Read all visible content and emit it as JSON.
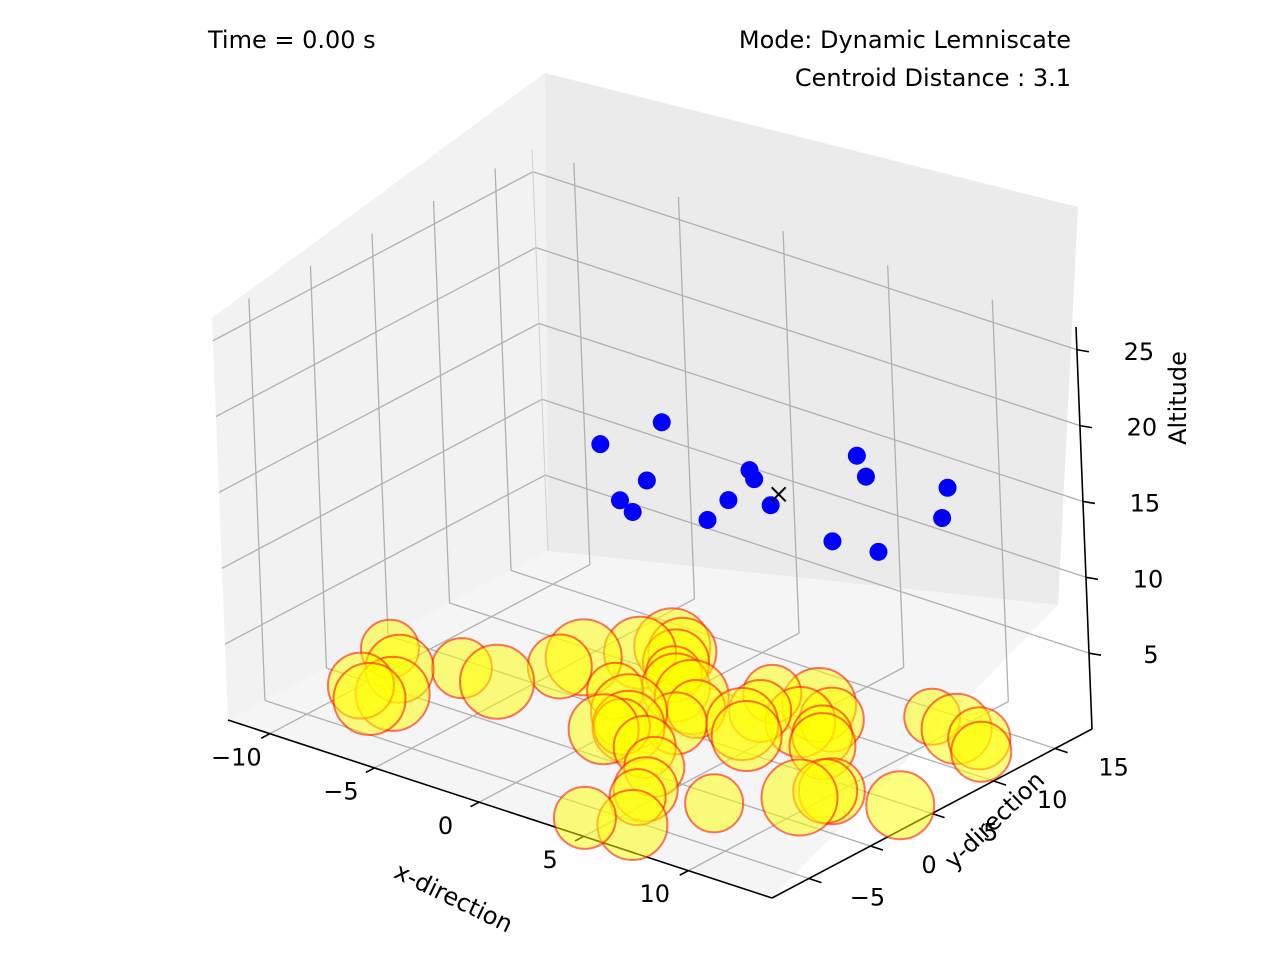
{
  "header": {
    "time_label": "Time = 0.00 s",
    "mode_label": "Mode: Dynamic Lemniscate",
    "distance_label": "Centroid Distance : 3.1"
  },
  "chart_data": {
    "type": "scatter3d",
    "title": "",
    "xlabel": "x-direction",
    "ylabel": "y-direction",
    "zlabel": "Altitude",
    "x_ticks": [
      "−10",
      "−5",
      "0",
      "5",
      "10"
    ],
    "y_ticks": [
      "−5",
      "0",
      "5",
      "10",
      "15"
    ],
    "z_ticks": [
      "5",
      "10",
      "15",
      "20",
      "25"
    ],
    "grid": true,
    "colors": {
      "obstacle_fill": "#ffff00",
      "obstacle_edge": "#ff0000",
      "agent": "#0000ff",
      "pane": "#f2f2f2",
      "grid": "#b0b0b0"
    },
    "series": [
      {
        "name": "",
        "marker": "circle-large",
        "points": [
          [
            -11.2,
            3.8,
            0
          ],
          [
            -9.8,
            2.2,
            0
          ],
          [
            -8.0,
            4.2,
            0
          ],
          [
            -8.6,
            -0.4,
            0
          ],
          [
            -9.0,
            -1.6,
            0
          ],
          [
            -10.0,
            -0.6,
            0
          ],
          [
            -6.2,
            4.0,
            0
          ],
          [
            -5.2,
            7.4,
            0
          ],
          [
            -5.0,
            9.0,
            0
          ],
          [
            -3.6,
            11.2,
            0
          ],
          [
            -3.0,
            12.8,
            0
          ],
          [
            -2.4,
            12.6,
            0
          ],
          [
            -2.0,
            11.4,
            0
          ],
          [
            -1.4,
            10.2,
            0
          ],
          [
            -0.6,
            9.0,
            0
          ],
          [
            -2.2,
            6.8,
            0
          ],
          [
            -0.6,
            5.2,
            0
          ],
          [
            0.4,
            8.6,
            0
          ],
          [
            1.2,
            7.6,
            0
          ],
          [
            0.2,
            3.8,
            0
          ],
          [
            1.4,
            5.6,
            0
          ],
          [
            2.6,
            11.4,
            0
          ],
          [
            3.2,
            9.4,
            0
          ],
          [
            3.4,
            7.6,
            0
          ],
          [
            5.0,
            9.6,
            0
          ],
          [
            4.2,
            6.6,
            0
          ],
          [
            4.6,
            11.8,
            0
          ],
          [
            5.8,
            10.8,
            0
          ],
          [
            6.4,
            9.0,
            0
          ],
          [
            7.0,
            8.0,
            0
          ],
          [
            8.6,
            14.2,
            0
          ],
          [
            10.0,
            13.8,
            0
          ],
          [
            11.2,
            13.6,
            0
          ],
          [
            12.0,
            12.4,
            0
          ],
          [
            -0.4,
            2.8,
            0
          ],
          [
            0.0,
            3.6,
            0
          ],
          [
            1.8,
            2.4,
            0
          ],
          [
            3.2,
            0.8,
            0
          ],
          [
            4.2,
            -1.6,
            0
          ],
          [
            4.4,
            -2.6,
            0
          ],
          [
            7.0,
            -0.8,
            0
          ],
          [
            9.2,
            2.4,
            0
          ],
          [
            9.6,
            3.8,
            0
          ],
          [
            9.8,
            4.0,
            0
          ],
          [
            12.6,
            4.8,
            0
          ],
          [
            4.0,
            -6.2,
            0
          ],
          [
            5.8,
            -5.4,
            0
          ]
        ]
      },
      {
        "name": "",
        "marker": "circle-small",
        "points": [
          [
            -5.0,
            11.0,
            13.2
          ],
          [
            -3.2,
            13.0,
            14.6
          ],
          [
            -1.6,
            9.0,
            13.2
          ],
          [
            1.2,
            12.6,
            13.6
          ],
          [
            2.4,
            12.2,
            12.0
          ],
          [
            0.8,
            13.6,
            12.4
          ],
          [
            0.0,
            12.8,
            11.0
          ],
          [
            4.6,
            15.6,
            14.8
          ],
          [
            5.0,
            15.6,
            13.6
          ],
          [
            5.2,
            12.4,
            10.8
          ],
          [
            6.8,
            13.4,
            10.4
          ],
          [
            8.2,
            16.8,
            13.8
          ],
          [
            8.0,
            16.6,
            11.8
          ],
          [
            -4.4,
            11.4,
            9.6
          ],
          [
            -3.2,
            10.4,
            9.8
          ],
          [
            -0.2,
            11.4,
            10.2
          ]
        ]
      },
      {
        "name": "",
        "marker": "x",
        "points": [
          [
            2.2,
            13.2,
            12.2
          ]
        ]
      }
    ]
  }
}
